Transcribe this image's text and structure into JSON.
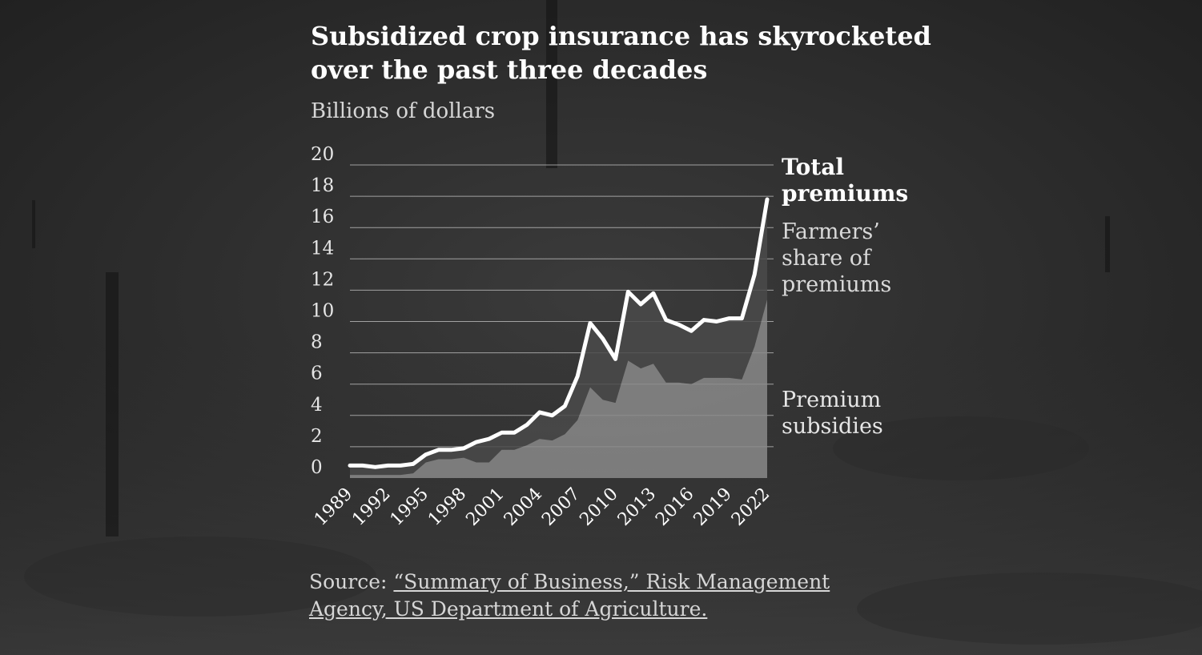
{
  "header": {
    "title": "Subsidized crop insurance has skyrocketed over the past three decades",
    "unit_label": "Billions of dollars"
  },
  "source": {
    "prefix": "Source: ",
    "link_text": "“Summary of Business,” Risk Management Agency, US Department of Agriculture."
  },
  "colors": {
    "background": "#2a2a2a",
    "total_line": "#ffffff",
    "farmers_share_fill": "#4a4a4a",
    "subsidies_fill": "#8a8a8a",
    "gridline": "#bdbdbd"
  },
  "chart_data": {
    "type": "area",
    "title": "Subsidized crop insurance has skyrocketed over the past three decades",
    "ylabel": "Billions of dollars",
    "ylim": [
      0,
      20
    ],
    "y_ticks": [
      0,
      2,
      4,
      6,
      8,
      10,
      12,
      14,
      16,
      18,
      20
    ],
    "x_ticks": [
      "1989",
      "1992",
      "1995",
      "1998",
      "2001",
      "2004",
      "2007",
      "2010",
      "2013",
      "2016",
      "2019",
      "2022"
    ],
    "grid": true,
    "x": [
      1989,
      1990,
      1991,
      1992,
      1993,
      1994,
      1995,
      1996,
      1997,
      1998,
      1999,
      2000,
      2001,
      2002,
      2003,
      2004,
      2005,
      2006,
      2007,
      2008,
      2009,
      2010,
      2011,
      2012,
      2013,
      2014,
      2015,
      2016,
      2017,
      2018,
      2019,
      2020,
      2021,
      2022
    ],
    "series": [
      {
        "name": "Total premiums",
        "values": [
          0.8,
          0.8,
          0.7,
          0.8,
          0.8,
          0.9,
          1.5,
          1.8,
          1.8,
          1.9,
          2.3,
          2.5,
          2.9,
          2.9,
          3.4,
          4.2,
          4.0,
          4.6,
          6.5,
          9.9,
          8.9,
          7.6,
          11.9,
          11.1,
          11.8,
          10.1,
          9.8,
          9.4,
          10.1,
          10.0,
          10.2,
          10.2,
          13.0,
          17.8
        ]
      },
      {
        "name": "Farmers’ share of premiums",
        "values": [
          0.6,
          0.6,
          0.5,
          0.6,
          0.6,
          0.6,
          0.5,
          0.6,
          0.6,
          0.6,
          1.3,
          1.5,
          1.1,
          1.1,
          1.3,
          1.7,
          1.6,
          1.8,
          2.8,
          4.1,
          3.9,
          2.8,
          4.4,
          4.1,
          4.5,
          4.0,
          3.7,
          3.4,
          3.7,
          3.6,
          3.8,
          3.9,
          4.6,
          6.4
        ]
      },
      {
        "name": "Premium subsidies",
        "values": [
          0.2,
          0.2,
          0.2,
          0.2,
          0.2,
          0.3,
          1.0,
          1.2,
          1.2,
          1.3,
          1.0,
          1.0,
          1.8,
          1.8,
          2.1,
          2.5,
          2.4,
          2.8,
          3.7,
          5.8,
          5.0,
          4.8,
          7.5,
          7.0,
          7.3,
          6.1,
          6.1,
          6.0,
          6.4,
          6.4,
          6.4,
          6.3,
          8.4,
          11.4
        ]
      }
    ],
    "annotations": [
      {
        "series": "Total premiums",
        "text": "Total premiums"
      },
      {
        "series": "Farmers’ share of premiums",
        "text": "Farmers’ share of premiums"
      },
      {
        "series": "Premium subsidies",
        "text": "Premium subsidies"
      }
    ]
  }
}
